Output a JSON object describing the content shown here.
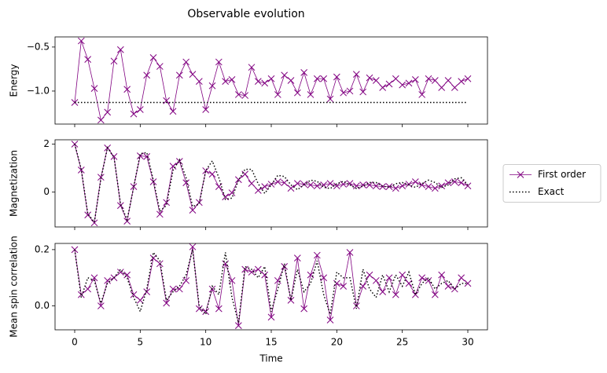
{
  "chart_data": [
    {
      "type": "line",
      "title": "Observable evolution",
      "y_label": "Energy",
      "x": [
        0,
        0.5,
        1,
        1.5,
        2,
        2.5,
        3,
        3.5,
        4,
        4.5,
        5,
        5.5,
        6,
        6.5,
        7,
        7.5,
        8,
        8.5,
        9,
        9.5,
        10,
        10.5,
        11,
        11.5,
        12,
        12.5,
        13,
        13.5,
        14,
        14.5,
        15,
        15.5,
        16,
        16.5,
        17,
        17.5,
        18,
        18.5,
        19,
        19.5,
        20,
        20.5,
        21,
        21.5,
        22,
        22.5,
        23,
        23.5,
        24,
        24.5,
        25,
        25.5,
        26,
        26.5,
        27,
        27.5,
        28,
        28.5,
        29,
        29.5,
        30
      ],
      "series": [
        {
          "name": "First order",
          "color": "#800080",
          "marker": "x",
          "linestyle": "solid",
          "values": [
            -1.13,
            -0.43,
            -0.64,
            -0.97,
            -1.33,
            -1.24,
            -0.66,
            -0.53,
            -0.98,
            -1.26,
            -1.21,
            -0.82,
            -0.62,
            -0.72,
            -1.11,
            -1.23,
            -0.82,
            -0.67,
            -0.81,
            -0.89,
            -1.21,
            -0.94,
            -0.67,
            -0.89,
            -0.87,
            -1.04,
            -1.05,
            -0.73,
            -0.89,
            -0.91,
            -0.86,
            -1.04,
            -0.82,
            -0.88,
            -1.02,
            -0.79,
            -1.04,
            -0.86,
            -0.86,
            -1.09,
            -0.84,
            -1.02,
            -1.0,
            -0.81,
            -1.01,
            -0.85,
            -0.88,
            -0.96,
            -0.92,
            -0.86,
            -0.93,
            -0.91,
            -0.87,
            -1.04,
            -0.86,
            -0.88,
            -0.96,
            -0.88,
            -0.96,
            -0.89,
            -0.86
          ]
        },
        {
          "name": "Exact",
          "color": "#000000",
          "linestyle": "dotted",
          "x": [
            0,
            30
          ],
          "values": [
            -1.13,
            -1.13
          ]
        }
      ],
      "xlim": [
        -1.5,
        31.5
      ],
      "xticks": [
        0,
        5,
        10,
        15,
        20,
        25,
        30
      ],
      "xtick_labels": false,
      "ylim": [
        -1.375,
        -0.385
      ],
      "yticks": [
        {
          "value": -1.0,
          "label": "−1.0"
        },
        {
          "value": -0.5,
          "label": "−0.5"
        }
      ]
    },
    {
      "type": "line",
      "y_label": "Magnetization",
      "legend": "right",
      "x": [
        0,
        0.5,
        1,
        1.5,
        2,
        2.5,
        3,
        3.5,
        4,
        4.5,
        5,
        5.5,
        6,
        6.5,
        7,
        7.5,
        8,
        8.5,
        9,
        9.5,
        10,
        10.5,
        11,
        11.5,
        12,
        12.5,
        13,
        13.5,
        14,
        14.5,
        15,
        15.5,
        16,
        16.5,
        17,
        17.5,
        18,
        18.5,
        19,
        19.5,
        20,
        20.5,
        21,
        21.5,
        22,
        22.5,
        23,
        23.5,
        24,
        24.5,
        25,
        25.5,
        26,
        26.5,
        27,
        27.5,
        28,
        28.5,
        29,
        29.5,
        30
      ],
      "series": [
        {
          "name": "First order",
          "color": "#800080",
          "marker": "x",
          "linestyle": "solid",
          "values": [
            2.0,
            0.92,
            -0.95,
            -1.28,
            0.62,
            1.84,
            1.48,
            -0.56,
            -1.21,
            0.23,
            1.51,
            1.48,
            0.43,
            -0.92,
            -0.43,
            1.08,
            1.28,
            0.39,
            -0.75,
            -0.43,
            0.89,
            0.75,
            0.23,
            -0.2,
            -0.03,
            0.52,
            0.75,
            0.36,
            0.07,
            0.23,
            0.33,
            0.43,
            0.39,
            0.16,
            0.36,
            0.33,
            0.3,
            0.26,
            0.3,
            0.36,
            0.26,
            0.33,
            0.36,
            0.26,
            0.3,
            0.3,
            0.26,
            0.23,
            0.23,
            0.16,
            0.26,
            0.33,
            0.43,
            0.3,
            0.23,
            0.16,
            0.26,
            0.39,
            0.43,
            0.39,
            0.26
          ]
        },
        {
          "name": "Exact",
          "color": "#000000",
          "linestyle": "dotted",
          "values": [
            2.0,
            0.95,
            -0.9,
            -1.25,
            0.55,
            1.85,
            1.45,
            -0.5,
            -1.15,
            0.2,
            1.6,
            1.65,
            0.5,
            -0.8,
            -0.55,
            0.9,
            1.35,
            0.6,
            -0.6,
            -0.5,
            0.9,
            1.3,
            0.6,
            -0.3,
            -0.25,
            0.5,
            0.95,
            0.95,
            0.35,
            -0.05,
            0.3,
            0.7,
            0.65,
            0.3,
            0.1,
            0.3,
            0.5,
            0.45,
            0.2,
            0.15,
            0.35,
            0.45,
            0.3,
            0.15,
            0.25,
            0.4,
            0.4,
            0.25,
            0.2,
            0.35,
            0.4,
            0.3,
            0.2,
            0.35,
            0.5,
            0.4,
            0.2,
            0.3,
            0.55,
            0.6,
            0.3
          ]
        }
      ],
      "xlim": [
        -1.5,
        31.5
      ],
      "xticks": [
        0,
        5,
        10,
        15,
        20,
        25,
        30
      ],
      "xtick_labels": false,
      "ylim": [
        -1.45,
        2.18
      ],
      "yticks": [
        0,
        2
      ]
    },
    {
      "type": "line",
      "y_label": "Mean spin correlation",
      "x_label": "Time",
      "x": [
        0,
        0.5,
        1,
        1.5,
        2,
        2.5,
        3,
        3.5,
        4,
        4.5,
        5,
        5.5,
        6,
        6.5,
        7,
        7.5,
        8,
        8.5,
        9,
        9.5,
        10,
        10.5,
        11,
        11.5,
        12,
        12.5,
        13,
        13.5,
        14,
        14.5,
        15,
        15.5,
        16,
        16.5,
        17,
        17.5,
        18,
        18.5,
        19,
        19.5,
        20,
        20.5,
        21,
        21.5,
        22,
        22.5,
        23,
        23.5,
        24,
        24.5,
        25,
        25.5,
        26,
        26.5,
        27,
        27.5,
        28,
        28.5,
        29,
        29.5,
        30
      ],
      "series": [
        {
          "name": "First order",
          "color": "#800080",
          "marker": "x",
          "linestyle": "solid",
          "values": [
            0.2,
            0.04,
            0.06,
            0.1,
            0.0,
            0.09,
            0.1,
            0.12,
            0.11,
            0.04,
            0.02,
            0.05,
            0.17,
            0.15,
            0.01,
            0.06,
            0.06,
            0.09,
            0.21,
            -0.01,
            -0.02,
            0.06,
            -0.01,
            0.15,
            0.09,
            -0.07,
            0.13,
            0.12,
            0.13,
            0.11,
            -0.04,
            0.09,
            0.14,
            0.02,
            0.17,
            -0.01,
            0.11,
            0.18,
            0.1,
            -0.05,
            0.08,
            0.07,
            0.19,
            0.0,
            0.07,
            0.11,
            0.09,
            0.05,
            0.1,
            0.04,
            0.11,
            0.08,
            0.04,
            0.1,
            0.09,
            0.04,
            0.11,
            0.07,
            0.06,
            0.1,
            0.08
          ]
        },
        {
          "name": "Exact",
          "color": "#000000",
          "linestyle": "dotted",
          "values": [
            0.2,
            0.03,
            0.1,
            0.09,
            0.01,
            0.08,
            0.1,
            0.13,
            0.1,
            0.03,
            -0.02,
            0.06,
            0.19,
            0.16,
            0.02,
            0.05,
            0.07,
            0.11,
            0.2,
            0.0,
            -0.03,
            0.07,
            0.04,
            0.19,
            0.03,
            -0.06,
            0.14,
            0.13,
            0.1,
            0.14,
            -0.02,
            0.06,
            0.15,
            0.02,
            0.13,
            0.05,
            0.08,
            0.16,
            0.04,
            -0.03,
            0.12,
            0.1,
            0.1,
            -0.01,
            0.13,
            0.06,
            0.03,
            0.11,
            0.05,
            0.11,
            0.07,
            0.12,
            0.04,
            0.08,
            0.1,
            0.06,
            0.08,
            0.09,
            0.06,
            0.08,
            0.08
          ]
        }
      ],
      "xlim": [
        -1.5,
        31.5
      ],
      "xticks": [
        0,
        5,
        10,
        15,
        20,
        25,
        30
      ],
      "xtick_labels": true,
      "ylim": [
        -0.085,
        0.222
      ],
      "yticks": [
        {
          "value": 0,
          "label": "0.0"
        },
        0.2
      ]
    }
  ]
}
